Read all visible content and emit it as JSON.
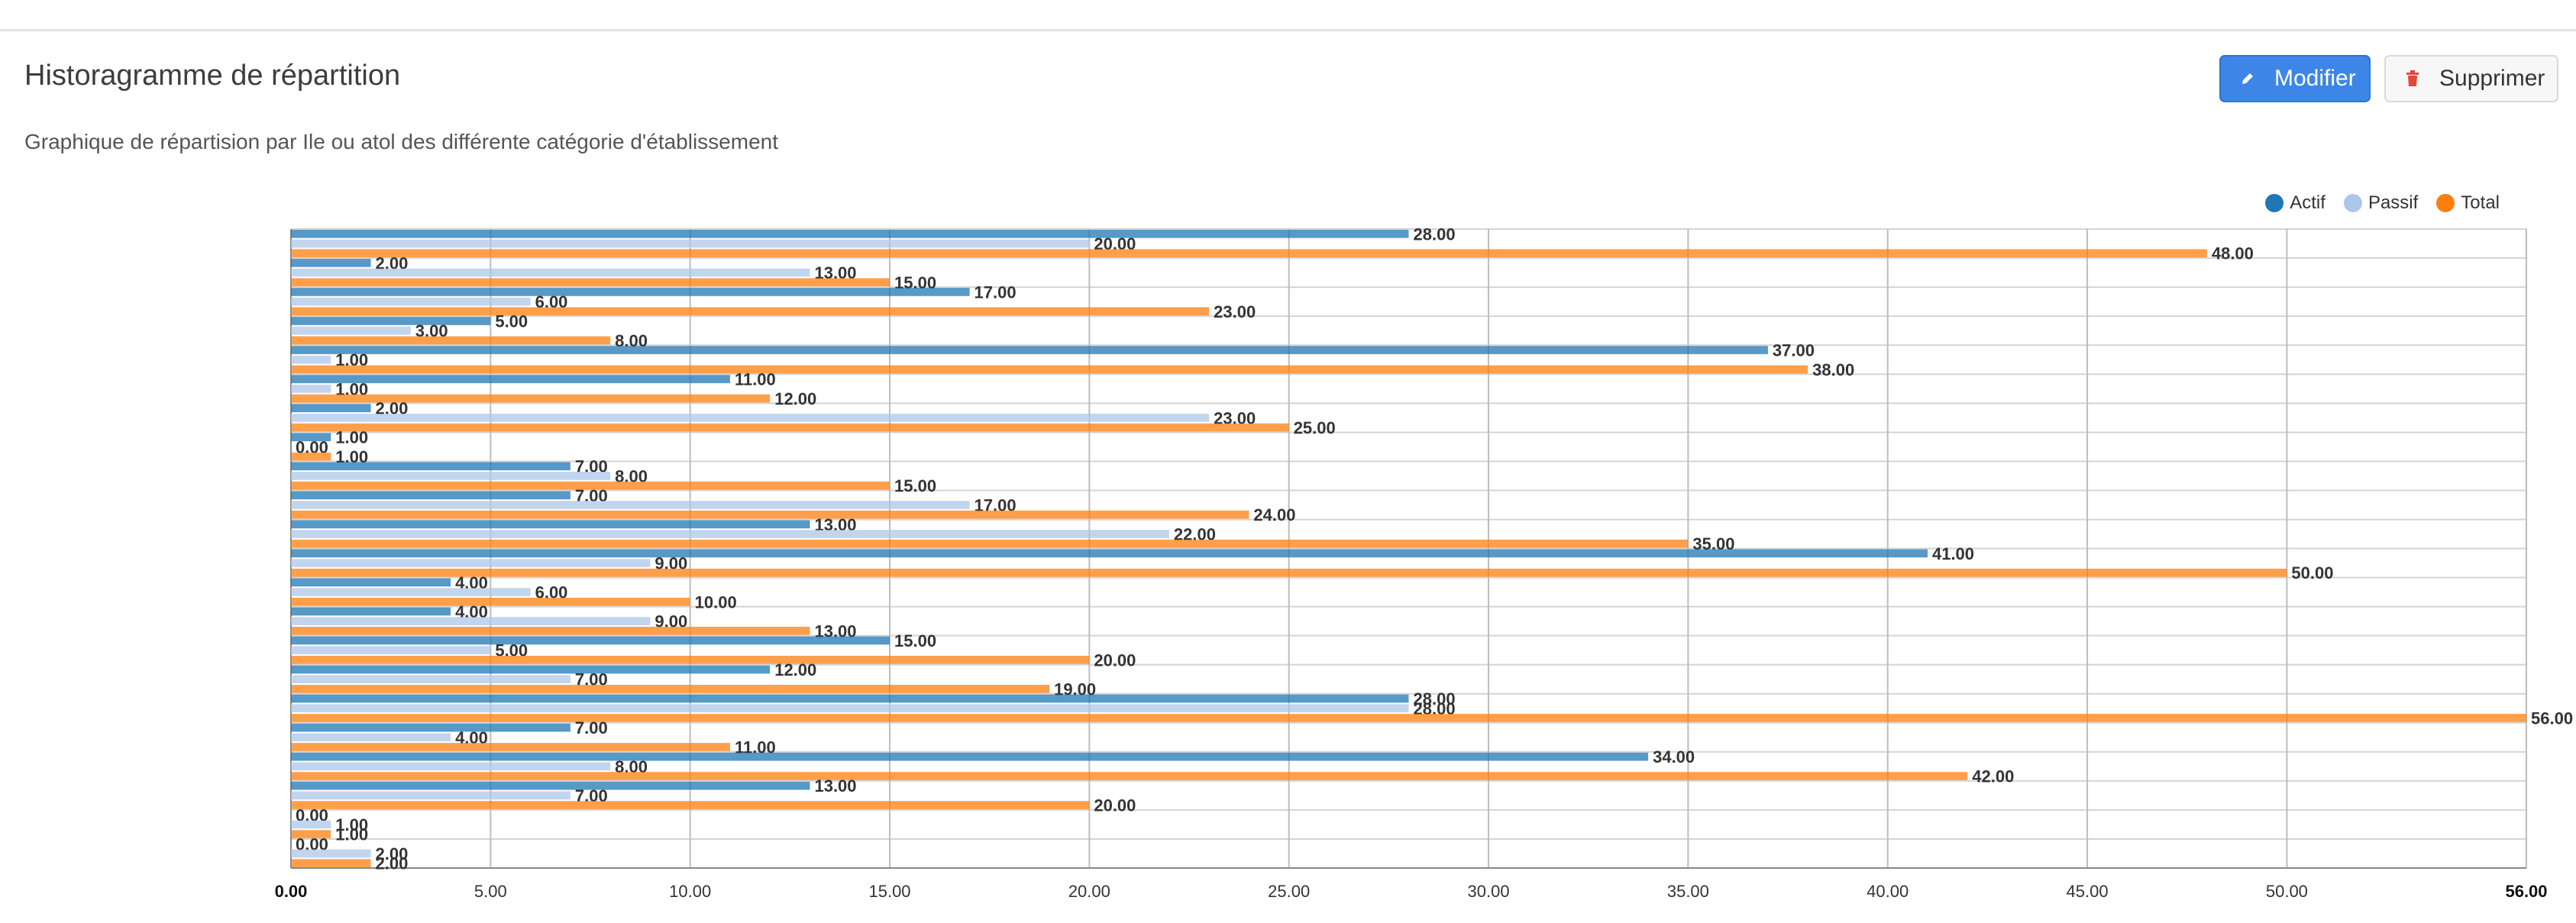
{
  "header": {
    "title": "Historagramme de répartition",
    "subtitle": "Graphique de répartision par Ile ou atol des différente catégorie d'établissement",
    "edit_label": "Modifier",
    "delete_label": "Supprimer",
    "edit_icon": "pencil-icon",
    "delete_icon": "trash-icon"
  },
  "colors": {
    "accent": "#3d86e8",
    "delete_icon": "#e04a3c",
    "actif": "#1f77b4",
    "passif": "#aec7e8",
    "total": "#ff7f0e"
  },
  "chart_data": {
    "type": "bar",
    "orientation": "horizontal",
    "grid": true,
    "legend_position": "top-right",
    "xlim": [
      0,
      56
    ],
    "x_ticks": [
      "0.00",
      "5.00",
      "10.00",
      "15.00",
      "20.00",
      "25.00",
      "30.00",
      "35.00",
      "40.00",
      "45.00",
      "50.00",
      "56.00"
    ],
    "categories": [
      "",
      "",
      "",
      "",
      "",
      "",
      "",
      "",
      "",
      "",
      "",
      "",
      "",
      "",
      "",
      "",
      "",
      "",
      "",
      "",
      "",
      ""
    ],
    "series": [
      {
        "name": "Actif",
        "color": "#1f77b4",
        "values": [
          28,
          2,
          17,
          5,
          37,
          11,
          2,
          1,
          7,
          7,
          13,
          41,
          4,
          4,
          15,
          12,
          28,
          7,
          34,
          13,
          0,
          0
        ]
      },
      {
        "name": "Passif",
        "color": "#aec7e8",
        "values": [
          20,
          13,
          6,
          3,
          1,
          1,
          23,
          0,
          8,
          17,
          22,
          9,
          6,
          9,
          5,
          7,
          28,
          4,
          8,
          7,
          1,
          2
        ]
      },
      {
        "name": "Total",
        "color": "#ff7f0e",
        "values": [
          48,
          15,
          23,
          8,
          38,
          12,
          25,
          1,
          15,
          24,
          35,
          50,
          10,
          13,
          20,
          19,
          56,
          11,
          42,
          20,
          1,
          2
        ]
      }
    ]
  }
}
